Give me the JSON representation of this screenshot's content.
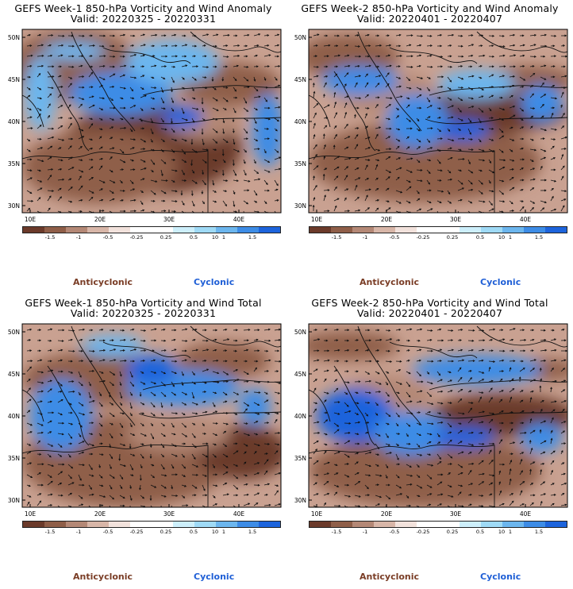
{
  "panels": [
    {
      "title": "GEFS Week-1 850-hPa Vorticity and Wind Anomaly",
      "valid": "Valid: 20220325 - 20220331",
      "variant": 0
    },
    {
      "title": "GEFS Week-2 850-hPa Vorticity and Wind Anomaly",
      "valid": "Valid: 20220401 - 20220407",
      "variant": 1
    },
    {
      "title": "GEFS Week-1 850-hPa Vorticity and Wind Total",
      "valid": "Valid: 20220325 - 20220331",
      "variant": 2
    },
    {
      "title": "GEFS Week-2 850-hPa Vorticity and Wind Total",
      "valid": "Valid: 20220401 - 20220407",
      "variant": 3
    }
  ],
  "lat_labels": [
    "50N",
    "45N",
    "40N",
    "35N",
    "30N"
  ],
  "lon_labels": [
    "10E",
    "20E",
    "30E",
    "40E"
  ],
  "colorbar": {
    "colors": [
      "#6b3a2a",
      "#8f5e48",
      "#b48876",
      "#d8b6a8",
      "#f2e2dc",
      "#ffffff",
      "#ffffff",
      "#cdeffb",
      "#9fdaf6",
      "#6cb6ee",
      "#3d8ce6",
      "#1d64dc"
    ],
    "labels": [
      "-1.5",
      "-1",
      "-0.5",
      "-0.25",
      "0.25",
      "0.5",
      "1",
      "1.5"
    ],
    "scale_label": "10"
  },
  "legend": {
    "anticyclonic": "Anticyclonic",
    "cyclonic": "Cyclonic"
  }
}
